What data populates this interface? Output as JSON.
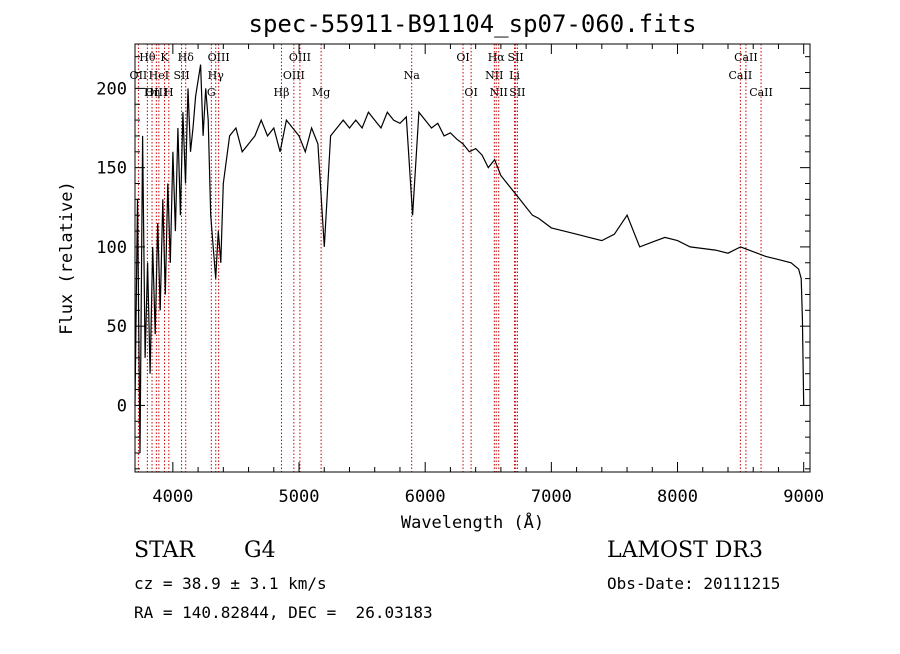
{
  "chart_data": {
    "type": "line",
    "title": "spec-55911-B91104_sp07-060.fits",
    "xlabel": "Wavelength (Å)",
    "ylabel": "Flux (relative)",
    "xlim": [
      3700,
      9050
    ],
    "ylim": [
      -42,
      228
    ],
    "xticks": [
      4000,
      5000,
      6000,
      7000,
      8000,
      9000
    ],
    "yticks": [
      0,
      50,
      100,
      150,
      200
    ],
    "grid": false,
    "line_color": "#000000",
    "marker_color": "#cc0000",
    "series": [
      {
        "x": [
          3700,
          3720,
          3740,
          3760,
          3780,
          3800,
          3820,
          3840,
          3860,
          3880,
          3900,
          3920,
          3940,
          3960,
          3980,
          4000,
          4020,
          4040,
          4060,
          4080,
          4100,
          4120,
          4140,
          4160,
          4180,
          4200,
          4220,
          4240,
          4260,
          4280,
          4300,
          4320,
          4340,
          4360,
          4380,
          4400,
          4450,
          4500,
          4550,
          4600,
          4650,
          4700,
          4750,
          4800,
          4850,
          4900,
          4950,
          5000,
          5050,
          5100,
          5150,
          5200,
          5250,
          5300,
          5350,
          5400,
          5450,
          5500,
          5550,
          5600,
          5650,
          5700,
          5750,
          5800,
          5850,
          5900,
          5950,
          6000,
          6050,
          6100,
          6150,
          6200,
          6250,
          6300,
          6350,
          6400,
          6450,
          6500,
          6550,
          6600,
          6650,
          6700,
          6750,
          6800,
          6850,
          6900,
          6950,
          7000,
          7100,
          7200,
          7300,
          7400,
          7500,
          7600,
          7700,
          7800,
          7900,
          8000,
          8100,
          8200,
          8300,
          8400,
          8500,
          8600,
          8700,
          8800,
          8900,
          8960,
          8980,
          8990,
          9000
        ],
        "y": [
          0,
          130,
          -30,
          170,
          30,
          90,
          20,
          100,
          45,
          115,
          60,
          130,
          70,
          140,
          90,
          160,
          110,
          175,
          120,
          185,
          140,
          200,
          160,
          175,
          195,
          205,
          215,
          170,
          200,
          180,
          120,
          100,
          80,
          110,
          90,
          140,
          170,
          175,
          160,
          165,
          170,
          180,
          170,
          175,
          160,
          180,
          175,
          170,
          160,
          175,
          165,
          100,
          170,
          175,
          180,
          175,
          180,
          175,
          185,
          180,
          175,
          185,
          180,
          178,
          182,
          120,
          185,
          180,
          175,
          178,
          170,
          172,
          168,
          165,
          160,
          162,
          158,
          150,
          155,
          145,
          140,
          135,
          130,
          125,
          120,
          118,
          115,
          112,
          110,
          108,
          106,
          104,
          108,
          120,
          100,
          103,
          106,
          104,
          100,
          99,
          98,
          96,
          100,
          97,
          94,
          92,
          90,
          86,
          80,
          55,
          0
        ]
      }
    ],
    "line_markers": [
      {
        "label": "Hθ",
        "x": 3798,
        "row": 0
      },
      {
        "label": "OII",
        "x": 3727,
        "row": 1
      },
      {
        "label": "OIII",
        "x": 3869,
        "row": 2
      },
      {
        "label": "Hη",
        "x": 3835,
        "row": 2
      },
      {
        "label": "K",
        "x": 3934,
        "row": 0
      },
      {
        "label": "HeI",
        "x": 3889,
        "row": 1
      },
      {
        "label": "SII",
        "x": 4069,
        "row": 1
      },
      {
        "label": "H",
        "x": 3968,
        "row": 2
      },
      {
        "label": "Hδ",
        "x": 4102,
        "row": 0
      },
      {
        "label": "OIII",
        "x": 4363,
        "row": 0
      },
      {
        "label": "Hγ",
        "x": 4340,
        "row": 1
      },
      {
        "label": "G",
        "x": 4305,
        "row": 2
      },
      {
        "label": "OIII",
        "x": 5007,
        "row": 0
      },
      {
        "label": "OIII",
        "x": 4959,
        "row": 1
      },
      {
        "label": "Hβ",
        "x": 4861,
        "row": 2
      },
      {
        "label": "Mg",
        "x": 5175,
        "row": 2
      },
      {
        "label": "Na",
        "x": 5893,
        "row": 1
      },
      {
        "label": "OI",
        "x": 6300,
        "row": 0
      },
      {
        "label": "OI",
        "x": 6364,
        "row": 2
      },
      {
        "label": "Hα",
        "x": 6563,
        "row": 0
      },
      {
        "label": "NII",
        "x": 6548,
        "row": 1
      },
      {
        "label": "NII",
        "x": 6583,
        "row": 2
      },
      {
        "label": "SII",
        "x": 6717,
        "row": 0
      },
      {
        "label": "Li",
        "x": 6708,
        "row": 1
      },
      {
        "label": "SII",
        "x": 6731,
        "row": 2
      },
      {
        "label": "CaII",
        "x": 8542,
        "row": 0
      },
      {
        "label": "CaII",
        "x": 8498,
        "row": 1
      },
      {
        "label": "CaII",
        "x": 8662,
        "row": 2
      }
    ]
  },
  "info": {
    "class_type": "STAR",
    "subclass": "G4",
    "survey": "LAMOST DR3",
    "cz": "cz = 38.9 ± 3.1 km/s",
    "obs_date": "Obs-Date: 20111215",
    "coords": "RA = 140.82844, DEC =  26.03183"
  }
}
